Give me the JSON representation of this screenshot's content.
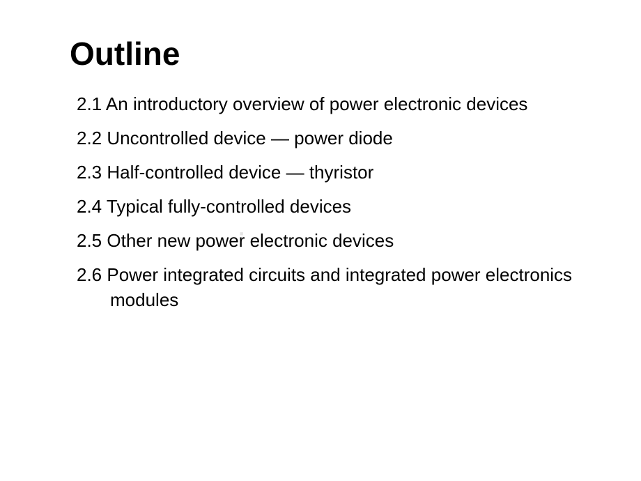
{
  "slide": {
    "title": "Outline",
    "title_fontsize": 46,
    "title_fontweight": "bold",
    "item_fontsize": 26,
    "background_color": "#ffffff",
    "text_color": "#000000",
    "items": [
      "2.1 An introductory overview of power electronic devices",
      "2.2 Uncontrolled device — power diode",
      "2.3 Half-controlled device — thyristor",
      "2.4 Typical fully-controlled devices",
      "2.5 Other new power electronic devices",
      "2.6 Power integrated circuits and integrated power electronics modules"
    ],
    "watermark": "■"
  }
}
